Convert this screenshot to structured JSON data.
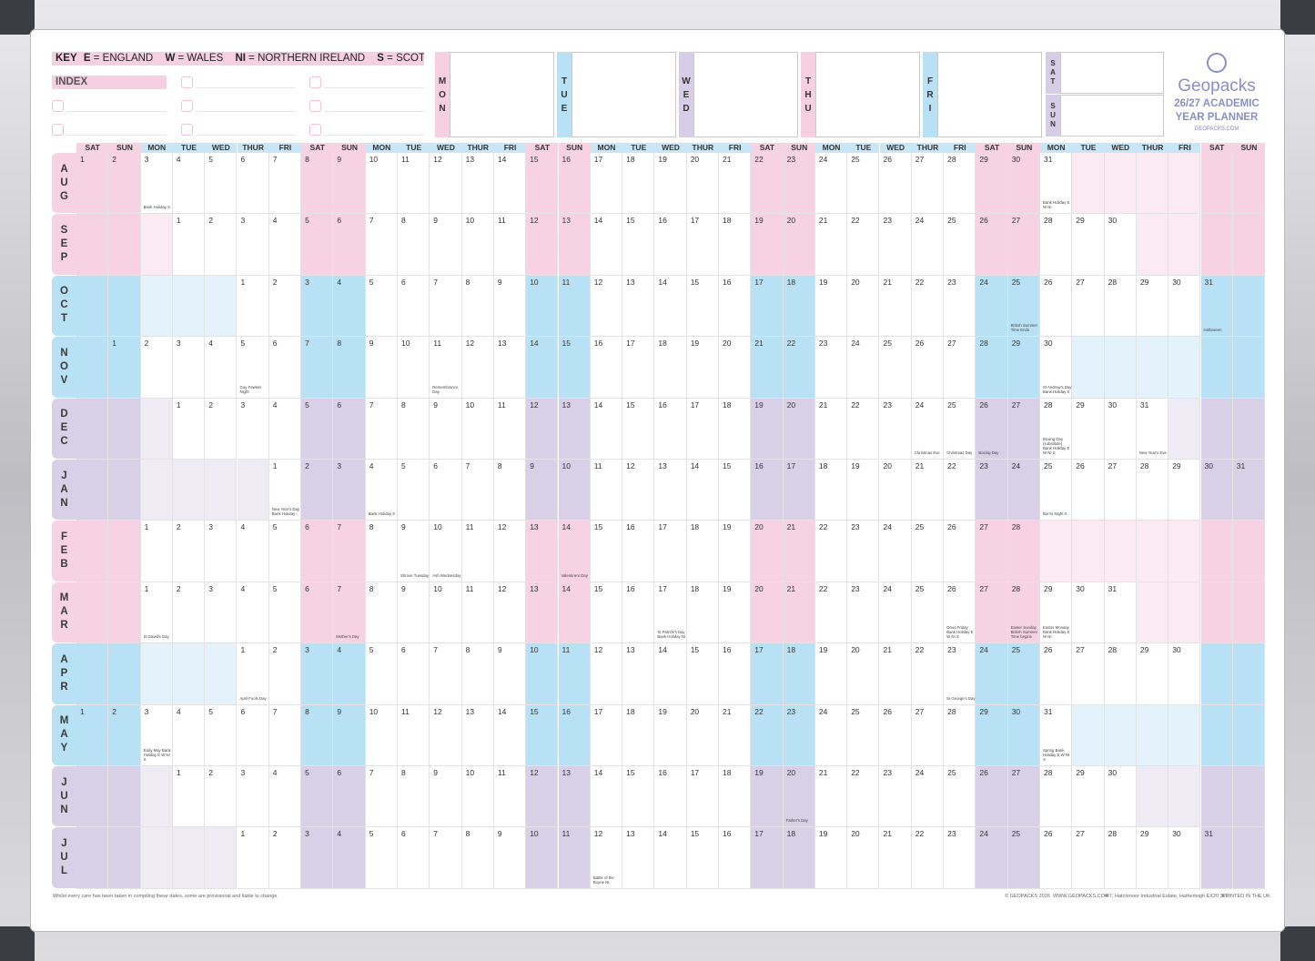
{
  "key": {
    "label": "KEY",
    "items": [
      {
        "code": "E",
        "text": "= ENGLAND"
      },
      {
        "code": "W",
        "text": "= WALES"
      },
      {
        "code": "NI",
        "text": "= NORTHERN IRELAND"
      },
      {
        "code": "S",
        "text": "= SCOTLAND"
      }
    ]
  },
  "index_label": "INDEX",
  "week_days": [
    {
      "label": "MON",
      "color": "#f6cfe0"
    },
    {
      "label": "TUE",
      "color": "#b9e1f5"
    },
    {
      "label": "WED",
      "color": "#d7cde6"
    },
    {
      "label": "THU",
      "color": "#f6cfe0"
    },
    {
      "label": "FRI",
      "color": "#b9e1f5"
    }
  ],
  "weekend_labels": [
    "SAT",
    "SUN"
  ],
  "brand": {
    "name": "Geopacks",
    "line1": "26/27 ACADEMIC",
    "line2": "YEAR PLANNER",
    "web": "GEOPACKS.COM"
  },
  "column_headers": [
    "SAT",
    "SUN",
    "MON",
    "TUE",
    "WED",
    "THUR",
    "FRI",
    "SAT",
    "SUN",
    "MON",
    "TUE",
    "WED",
    "THUR",
    "FRI",
    "SAT",
    "SUN",
    "MON",
    "TUE",
    "WED",
    "THUR",
    "FRI",
    "SAT",
    "SUN",
    "MON",
    "TUE",
    "WED",
    "THUR",
    "FRI",
    "SAT",
    "SUN",
    "MON",
    "TUE",
    "WED",
    "THUR",
    "FRI",
    "SAT",
    "SUN"
  ],
  "colors": {
    "pink": "#f6d2e3",
    "blue": "#b9e1f5",
    "purple": "#d8d0e7",
    "pink_light": "#fbeaf2",
    "blue_light": "#e4f3fb",
    "purple_light": "#eeebf5"
  },
  "months": [
    {
      "label": "AUG",
      "theme": "pink",
      "start": 0,
      "days": 31,
      "events": {
        "3": "Bank Holiday S",
        "31": "Bank Holiday E W NI"
      }
    },
    {
      "label": "SEP",
      "theme": "pink",
      "start": 3,
      "days": 30,
      "events": {}
    },
    {
      "label": "OCT",
      "theme": "blue",
      "start": 5,
      "days": 31,
      "events": {
        "25": "British Summer Time Ends",
        "31": "Halloween"
      }
    },
    {
      "label": "NOV",
      "theme": "blue",
      "start": 1,
      "days": 30,
      "events": {
        "5": "Guy Fawkes Night",
        "11": "Remembrance Day",
        "30": "St Andrew's Day Bank Holiday S"
      }
    },
    {
      "label": "DEC",
      "theme": "purple",
      "start": 3,
      "days": 31,
      "events": {
        "24": "Christmas Eve",
        "25": "Christmas Day",
        "26": "Boxing Day",
        "28": "Boxing Day (substitute) Bank Holiday E W NI S",
        "31": "New Year's Eve"
      }
    },
    {
      "label": "JAN",
      "theme": "purple",
      "start": 6,
      "days": 31,
      "events": {
        "1": "New Year's Day Bank Holiday",
        "4": "Bank Holiday S",
        "25": "Burns Night S"
      }
    },
    {
      "label": "FEB",
      "theme": "pink",
      "start": 2,
      "days": 28,
      "events": {
        "9": "Shrove Tuesday",
        "10": "Ash Wednesday",
        "14": "Valentine's Day"
      }
    },
    {
      "label": "MAR",
      "theme": "pink",
      "start": 2,
      "days": 31,
      "events": {
        "1": "St David's Day",
        "7": "Mother's Day",
        "17": "St Patrick's Day Bank Holiday NI",
        "26": "Good Friday Bank Holiday E W NI S",
        "28": "Easter Sunday British Summer Time begins",
        "29": "Easter Monday Bank Holiday E W NI"
      }
    },
    {
      "label": "APR",
      "theme": "blue",
      "start": 5,
      "days": 30,
      "events": {
        "1": "April Fools Day",
        "23": "St George's Day"
      }
    },
    {
      "label": "MAY",
      "theme": "blue",
      "start": 0,
      "days": 31,
      "events": {
        "3": "Early May Bank Holiday E W NI S",
        "31": "Spring Bank Holiday E W NI S"
      }
    },
    {
      "label": "JUN",
      "theme": "purple",
      "start": 3,
      "days": 30,
      "events": {
        "20": "Father's Day"
      }
    },
    {
      "label": "JUL",
      "theme": "purple",
      "start": 5,
      "days": 31,
      "events": {
        "12": "Battle of the Boyne NI"
      }
    }
  ],
  "footer": {
    "disclaimer": "Whilst every care has been taken in compiling these dates, some are provisional and liable to change.",
    "copyright": "© GEOPACKS 2026",
    "website": "WWW.GEOPACKS.COM",
    "address": "4-7, Hatchmoor Industrial Estate, Hatherleigh EX20 3LP",
    "printed": "PRINTED IN THE UK"
  }
}
